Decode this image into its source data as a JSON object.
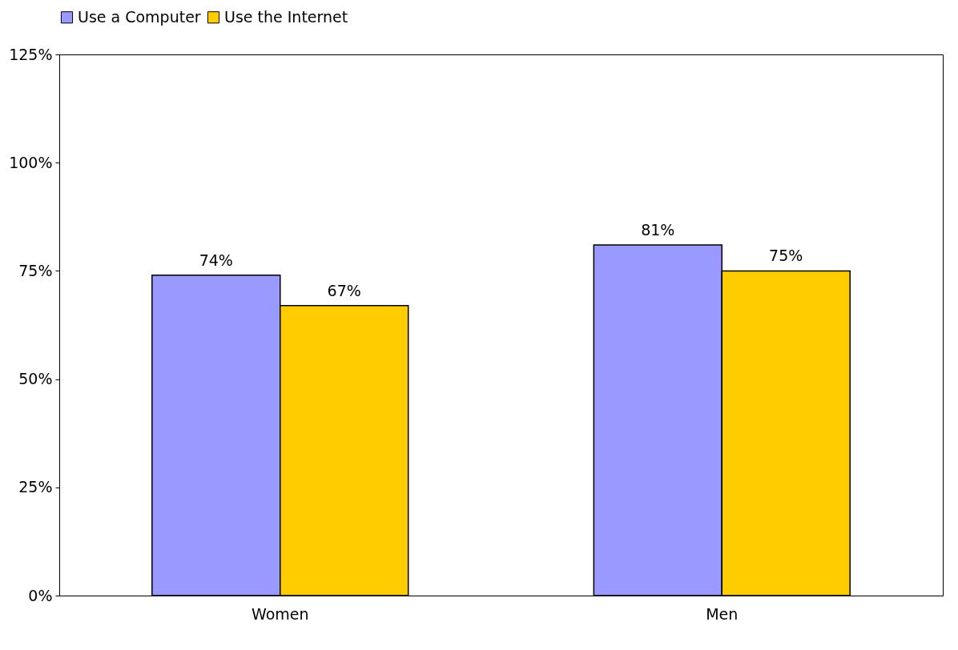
{
  "chart_data": {
    "type": "bar",
    "categories": [
      "Women",
      "Men"
    ],
    "series": [
      {
        "name": "Use a Computer",
        "color": "#9999ff",
        "values": [
          74,
          81
        ],
        "value_labels": [
          "74%",
          "81%"
        ]
      },
      {
        "name": "Use the Internet",
        "color": "#ffcc00",
        "values": [
          67,
          75
        ],
        "value_labels": [
          "67%",
          "75%"
        ]
      }
    ],
    "ylim": [
      0,
      125
    ],
    "yticks": [
      {
        "value": 0,
        "label": "0%"
      },
      {
        "value": 25,
        "label": "25%"
      },
      {
        "value": 50,
        "label": "50%"
      },
      {
        "value": 75,
        "label": "75%"
      },
      {
        "value": 100,
        "label": "100%"
      },
      {
        "value": 125,
        "label": "125%"
      }
    ],
    "legend": "top",
    "grid": false
  }
}
